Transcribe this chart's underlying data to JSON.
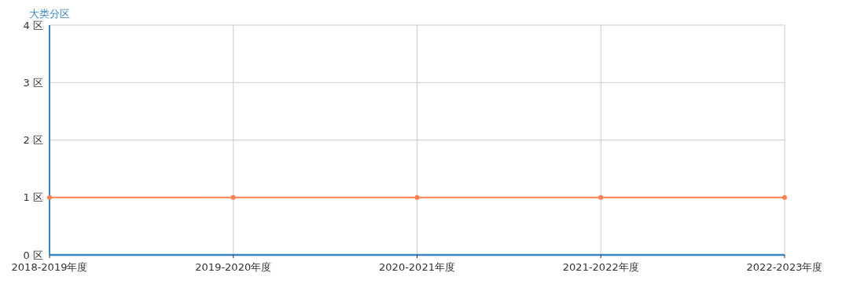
{
  "chart_data": {
    "type": "line",
    "ylabel": "大类分区",
    "categories": [
      "2018-2019年度",
      "2019-2020年度",
      "2020-2021年度",
      "2021-2022年度",
      "2022-2023年度"
    ],
    "series": [
      {
        "color": "#ff7f50",
        "values": [
          1,
          1,
          1,
          1,
          1
        ]
      }
    ],
    "ylim": [
      0,
      4
    ],
    "yticks": [
      {
        "value": 0,
        "label": "0 区"
      },
      {
        "value": 1,
        "label": "1 区"
      },
      {
        "value": 2,
        "label": "2 区"
      },
      {
        "value": 3,
        "label": "3 区"
      },
      {
        "value": 4,
        "label": "4 区"
      }
    ],
    "grid": true,
    "marker": "circle",
    "line_style": "solid"
  }
}
